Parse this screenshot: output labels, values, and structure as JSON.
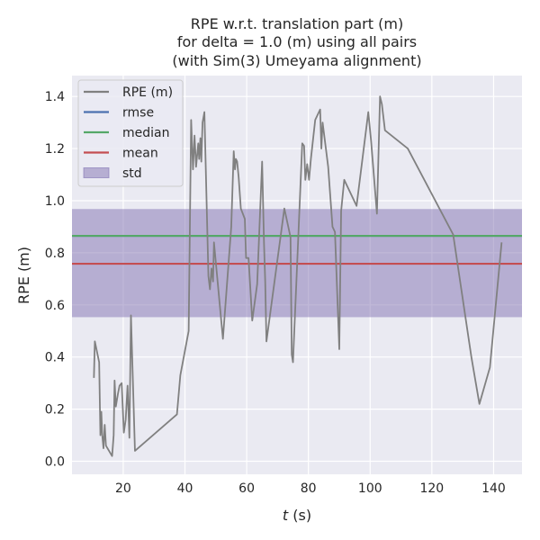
{
  "chart_data": {
    "type": "line",
    "title_lines": [
      "RPE w.r.t. translation part (m)",
      "for delta = 1.0 (m) using all pairs",
      "(with Sim(3) Umeyama alignment)"
    ],
    "xlabel_italic": "t",
    "xlabel_unit": " (s)",
    "ylabel": "RPE (m)",
    "xlim": [
      3.4,
      149.2
    ],
    "ylim": [
      -0.05,
      1.48
    ],
    "xticks": [
      20,
      40,
      60,
      80,
      100,
      120,
      140
    ],
    "yticks": [
      0.0,
      0.2,
      0.4,
      0.6,
      0.8,
      1.0,
      1.2,
      1.4
    ],
    "ytick_labels": [
      "0.0",
      "0.2",
      "0.4",
      "0.6",
      "0.8",
      "1.0",
      "1.2",
      "1.4"
    ],
    "grid": true,
    "legend_position": "top-left",
    "background_color": "#eaeaf2",
    "stats": {
      "rmse": 0.865,
      "median": 0.865,
      "mean": 0.758,
      "std_lower": 0.553,
      "std_upper": 0.968
    },
    "legend": [
      {
        "key": "rpe",
        "label": "RPE (m)",
        "color": "#808080",
        "kind": "line"
      },
      {
        "key": "rmse",
        "label": "rmse",
        "color": "#4c72b0",
        "kind": "line"
      },
      {
        "key": "median",
        "label": "median",
        "color": "#55a868",
        "kind": "line"
      },
      {
        "key": "mean",
        "label": "mean",
        "color": "#c44e52",
        "kind": "line"
      },
      {
        "key": "std",
        "label": "std",
        "color": "#8172b2",
        "kind": "patch"
      }
    ],
    "series": [
      {
        "name": "RPE (m)",
        "color": "#808080",
        "x": [
          10.5,
          10.8,
          12.2,
          12.6,
          12.9,
          13.2,
          13.6,
          14.0,
          14.4,
          16.4,
          16.9,
          17.2,
          17.6,
          18.3,
          18.8,
          19.5,
          20.2,
          20.8,
          21.4,
          22.0,
          22.5,
          23.8,
          37.4,
          38.5,
          41.2,
          42.0,
          42.6,
          43.1,
          43.6,
          44.3,
          44.6,
          45.0,
          45.3,
          45.7,
          46.3,
          47.6,
          48.1,
          48.6,
          49.1,
          49.4,
          52.3,
          55.0,
          55.8,
          56.2,
          56.5,
          56.9,
          57.4,
          58.1,
          59.4,
          59.8,
          60.6,
          61.8,
          63.4,
          65.0,
          65.6,
          66.0,
          66.4,
          72.2,
          74.2,
          74.6,
          75.0,
          78.0,
          78.6,
          79.0,
          79.6,
          80.2,
          80.8,
          82.2,
          83.8,
          84.2,
          84.6,
          86.4,
          87.8,
          88.6,
          90.0,
          90.6,
          91.6,
          95.6,
          99.4,
          100.3,
          102.2,
          103.2,
          103.8,
          104.8,
          112.2,
          126.9,
          132.8,
          135.4,
          138.8,
          142.6
        ],
        "y": [
          0.32,
          0.46,
          0.38,
          0.1,
          0.19,
          0.1,
          0.05,
          0.14,
          0.06,
          0.02,
          0.1,
          0.31,
          0.21,
          0.26,
          0.29,
          0.3,
          0.11,
          0.16,
          0.29,
          0.09,
          0.56,
          0.04,
          0.18,
          0.33,
          0.5,
          1.31,
          1.12,
          1.25,
          1.13,
          1.22,
          1.16,
          1.24,
          1.15,
          1.3,
          1.34,
          0.71,
          0.66,
          0.74,
          0.69,
          0.84,
          0.47,
          0.9,
          1.19,
          1.12,
          1.16,
          1.15,
          1.09,
          0.97,
          0.93,
          0.78,
          0.78,
          0.54,
          0.68,
          1.15,
          0.84,
          0.69,
          0.46,
          0.97,
          0.86,
          0.41,
          0.38,
          1.22,
          1.21,
          1.08,
          1.14,
          1.08,
          1.16,
          1.31,
          1.35,
          1.2,
          1.3,
          1.13,
          0.9,
          0.88,
          0.43,
          0.96,
          1.08,
          0.98,
          1.34,
          1.23,
          0.95,
          1.4,
          1.37,
          1.27,
          1.2,
          0.87,
          0.4,
          0.22,
          0.36,
          0.84
        ]
      }
    ]
  }
}
